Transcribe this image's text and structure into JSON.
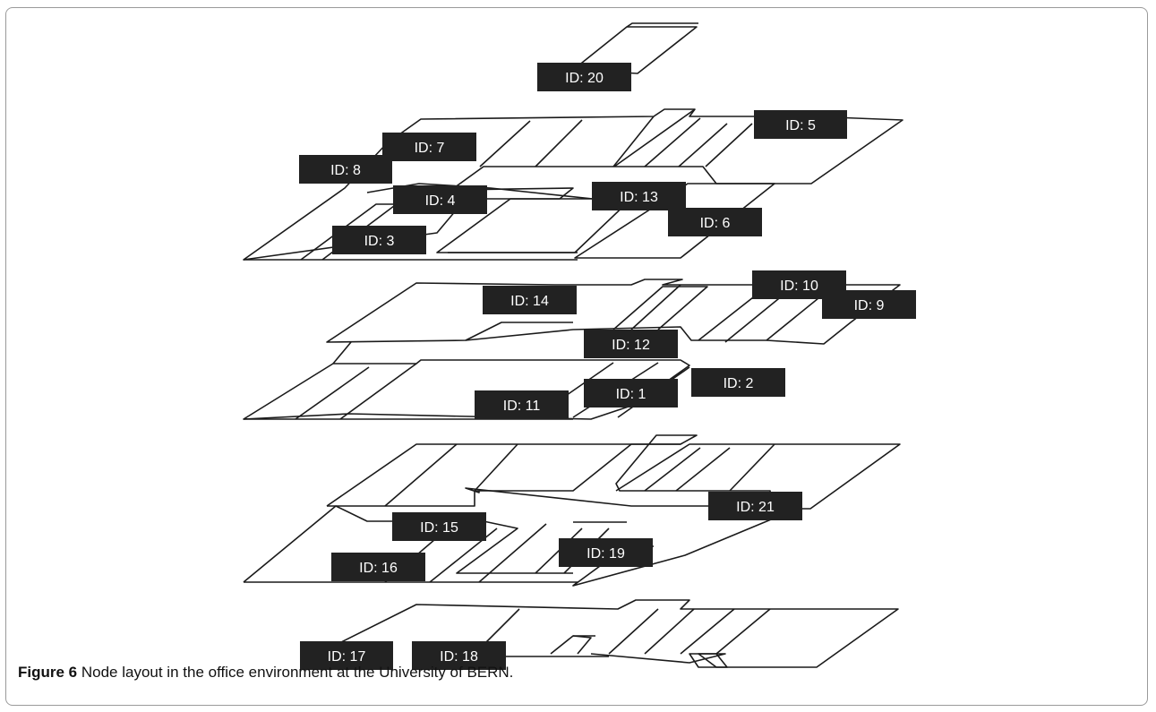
{
  "figure": {
    "caption_label": "Figure 6",
    "caption_text": "Node layout in the office environment at the University of BERN."
  },
  "nodes": [
    {
      "id": "ID: 20"
    },
    {
      "id": "ID: 5"
    },
    {
      "id": "ID: 7"
    },
    {
      "id": "ID: 8"
    },
    {
      "id": "ID: 4"
    },
    {
      "id": "ID: 13"
    },
    {
      "id": "ID: 6"
    },
    {
      "id": "ID: 3"
    },
    {
      "id": "ID: 14"
    },
    {
      "id": "ID: 10"
    },
    {
      "id": "ID: 9"
    },
    {
      "id": "ID: 12"
    },
    {
      "id": "ID: 1"
    },
    {
      "id": "ID: 2"
    },
    {
      "id": "ID: 11"
    },
    {
      "id": "ID: 21"
    },
    {
      "id": "ID: 15"
    },
    {
      "id": "ID: 19"
    },
    {
      "id": "ID: 16"
    },
    {
      "id": "ID: 17"
    },
    {
      "id": "ID: 18"
    }
  ],
  "colors": {
    "tag_fill": "#222222",
    "tag_text": "#ffffff",
    "line": "#1a1a1a"
  }
}
